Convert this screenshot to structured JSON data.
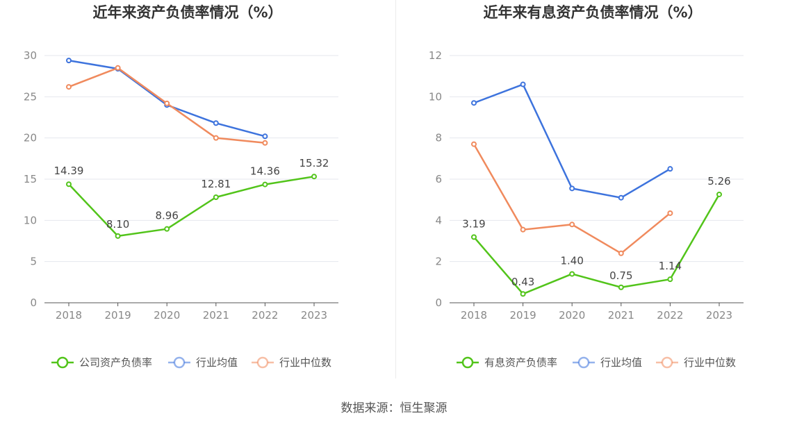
{
  "source_note": "数据来源：恒生聚源",
  "chart_data": [
    {
      "type": "line",
      "title": "近年来资产负债率情况（%）",
      "categories": [
        "2018",
        "2019",
        "2020",
        "2021",
        "2022",
        "2023"
      ],
      "ylim": [
        0,
        30
      ],
      "yticks": [
        0,
        5,
        10,
        15,
        20,
        25,
        30
      ],
      "grid": true,
      "legend_position": "bottom",
      "series": [
        {
          "name": "公司资产负债率",
          "color": "#52c41a",
          "values": [
            14.39,
            8.1,
            8.96,
            12.81,
            14.36,
            15.32
          ],
          "labels": [
            "14.39",
            "8.10",
            "8.96",
            "12.81",
            "14.36",
            "15.32"
          ]
        },
        {
          "name": "行业均值",
          "color": "#3d73dd",
          "values": [
            29.4,
            28.4,
            24.0,
            21.8,
            20.2,
            null
          ]
        },
        {
          "name": "行业中位数",
          "color": "#f08a5d",
          "values": [
            26.2,
            28.5,
            24.2,
            20.0,
            19.4,
            null
          ]
        }
      ]
    },
    {
      "type": "line",
      "title": "近年来有息资产负债率情况（%）",
      "categories": [
        "2018",
        "2019",
        "2020",
        "2021",
        "2022",
        "2023"
      ],
      "ylim": [
        0,
        12
      ],
      "yticks": [
        0,
        2,
        4,
        6,
        8,
        10,
        12
      ],
      "grid": true,
      "legend_position": "bottom",
      "series": [
        {
          "name": "有息资产负债率",
          "color": "#52c41a",
          "values": [
            3.19,
            0.43,
            1.4,
            0.75,
            1.14,
            5.26
          ],
          "labels": [
            "3.19",
            "0.43",
            "1.40",
            "0.75",
            "1.14",
            "5.26"
          ]
        },
        {
          "name": "行业均值",
          "color": "#3d73dd",
          "values": [
            9.7,
            10.6,
            5.55,
            5.1,
            6.5,
            null
          ]
        },
        {
          "name": "行业中位数",
          "color": "#f08a5d",
          "values": [
            7.7,
            3.55,
            3.8,
            2.4,
            4.35,
            null
          ]
        }
      ]
    }
  ]
}
